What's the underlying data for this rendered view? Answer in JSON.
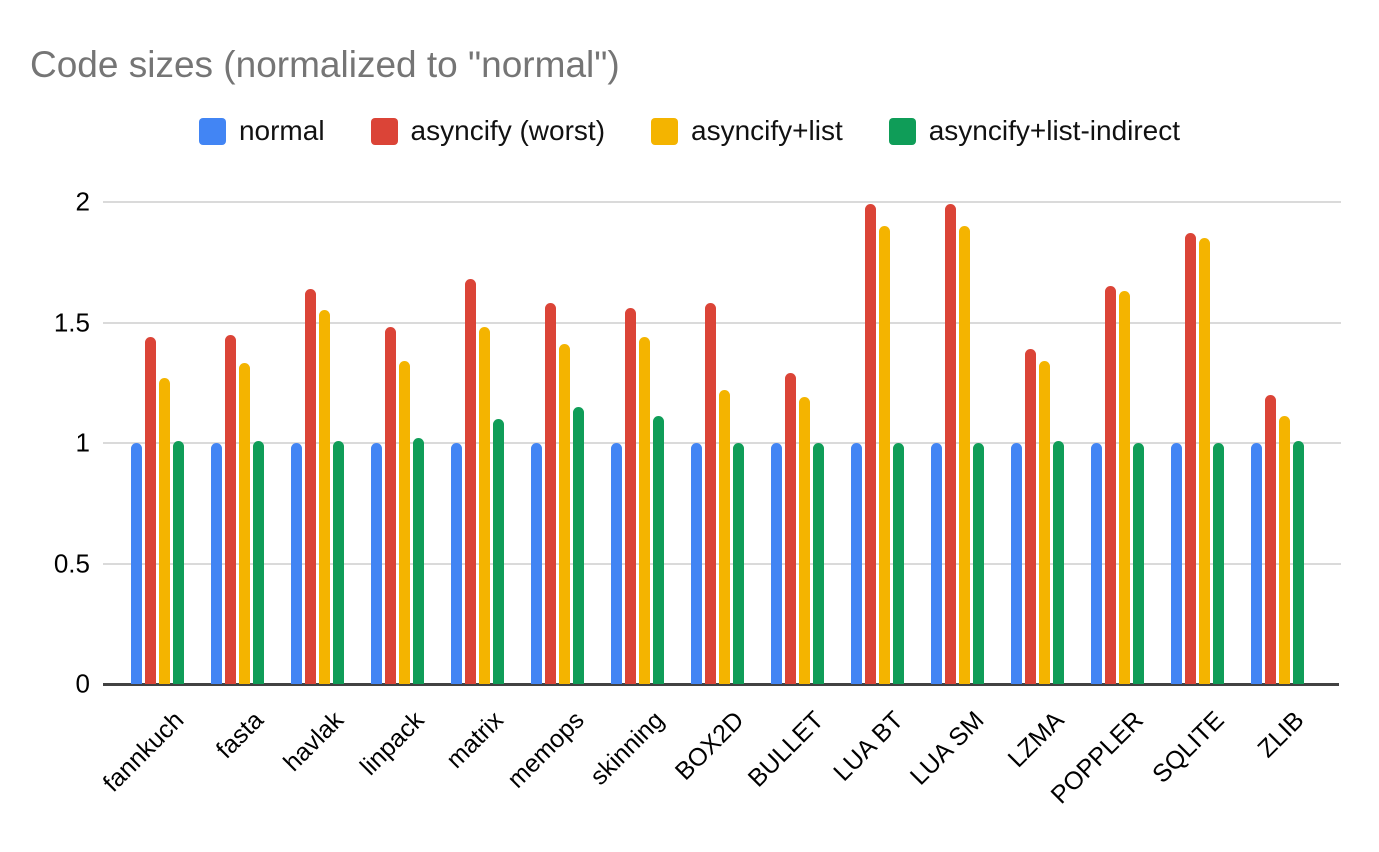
{
  "chart_data": {
    "type": "bar",
    "title": "Code sizes (normalized to \"normal\")",
    "title_color": "#757575",
    "categories": [
      "fannkuch",
      "fasta",
      "havlak",
      "linpack",
      "matrix",
      "memops",
      "skinning",
      "BOX2D",
      "BULLET",
      "LUA BT",
      "LUA SM",
      "LZMA",
      "POPPLER",
      "SQLITE",
      "ZLIB"
    ],
    "series": [
      {
        "name": "normal",
        "color": "#4285F4",
        "values": [
          1.0,
          1.0,
          1.0,
          1.0,
          1.0,
          1.0,
          1.0,
          1.0,
          1.0,
          1.0,
          1.0,
          1.0,
          1.0,
          1.0,
          1.0
        ]
      },
      {
        "name": "asyncify (worst)",
        "color": "#DB4437",
        "values": [
          1.44,
          1.45,
          1.64,
          1.48,
          1.68,
          1.58,
          1.56,
          1.58,
          1.29,
          1.99,
          1.99,
          1.39,
          1.65,
          1.87,
          1.2
        ]
      },
      {
        "name": "asyncify+list",
        "color": "#F4B400",
        "values": [
          1.27,
          1.33,
          1.55,
          1.34,
          1.48,
          1.41,
          1.44,
          1.22,
          1.19,
          1.9,
          1.9,
          1.34,
          1.63,
          1.85,
          1.11
        ]
      },
      {
        "name": "asyncify+list-indirect",
        "color": "#0F9D58",
        "values": [
          1.01,
          1.01,
          1.01,
          1.02,
          1.1,
          1.15,
          1.11,
          1.0,
          1.0,
          1.0,
          1.0,
          1.01,
          1.0,
          1.0,
          1.01
        ]
      }
    ],
    "xlabel": "",
    "ylabel": "",
    "ylim": [
      0,
      2
    ],
    "yticks": [
      0,
      0.5,
      1,
      1.5,
      2
    ],
    "ytick_labels": [
      "0",
      "0.5",
      "1",
      "1.5",
      "2"
    ],
    "grid": true,
    "legend_position": "top",
    "gridline_color": "#dadada",
    "axis_color": "#424242",
    "background_color": "#ffffff"
  }
}
